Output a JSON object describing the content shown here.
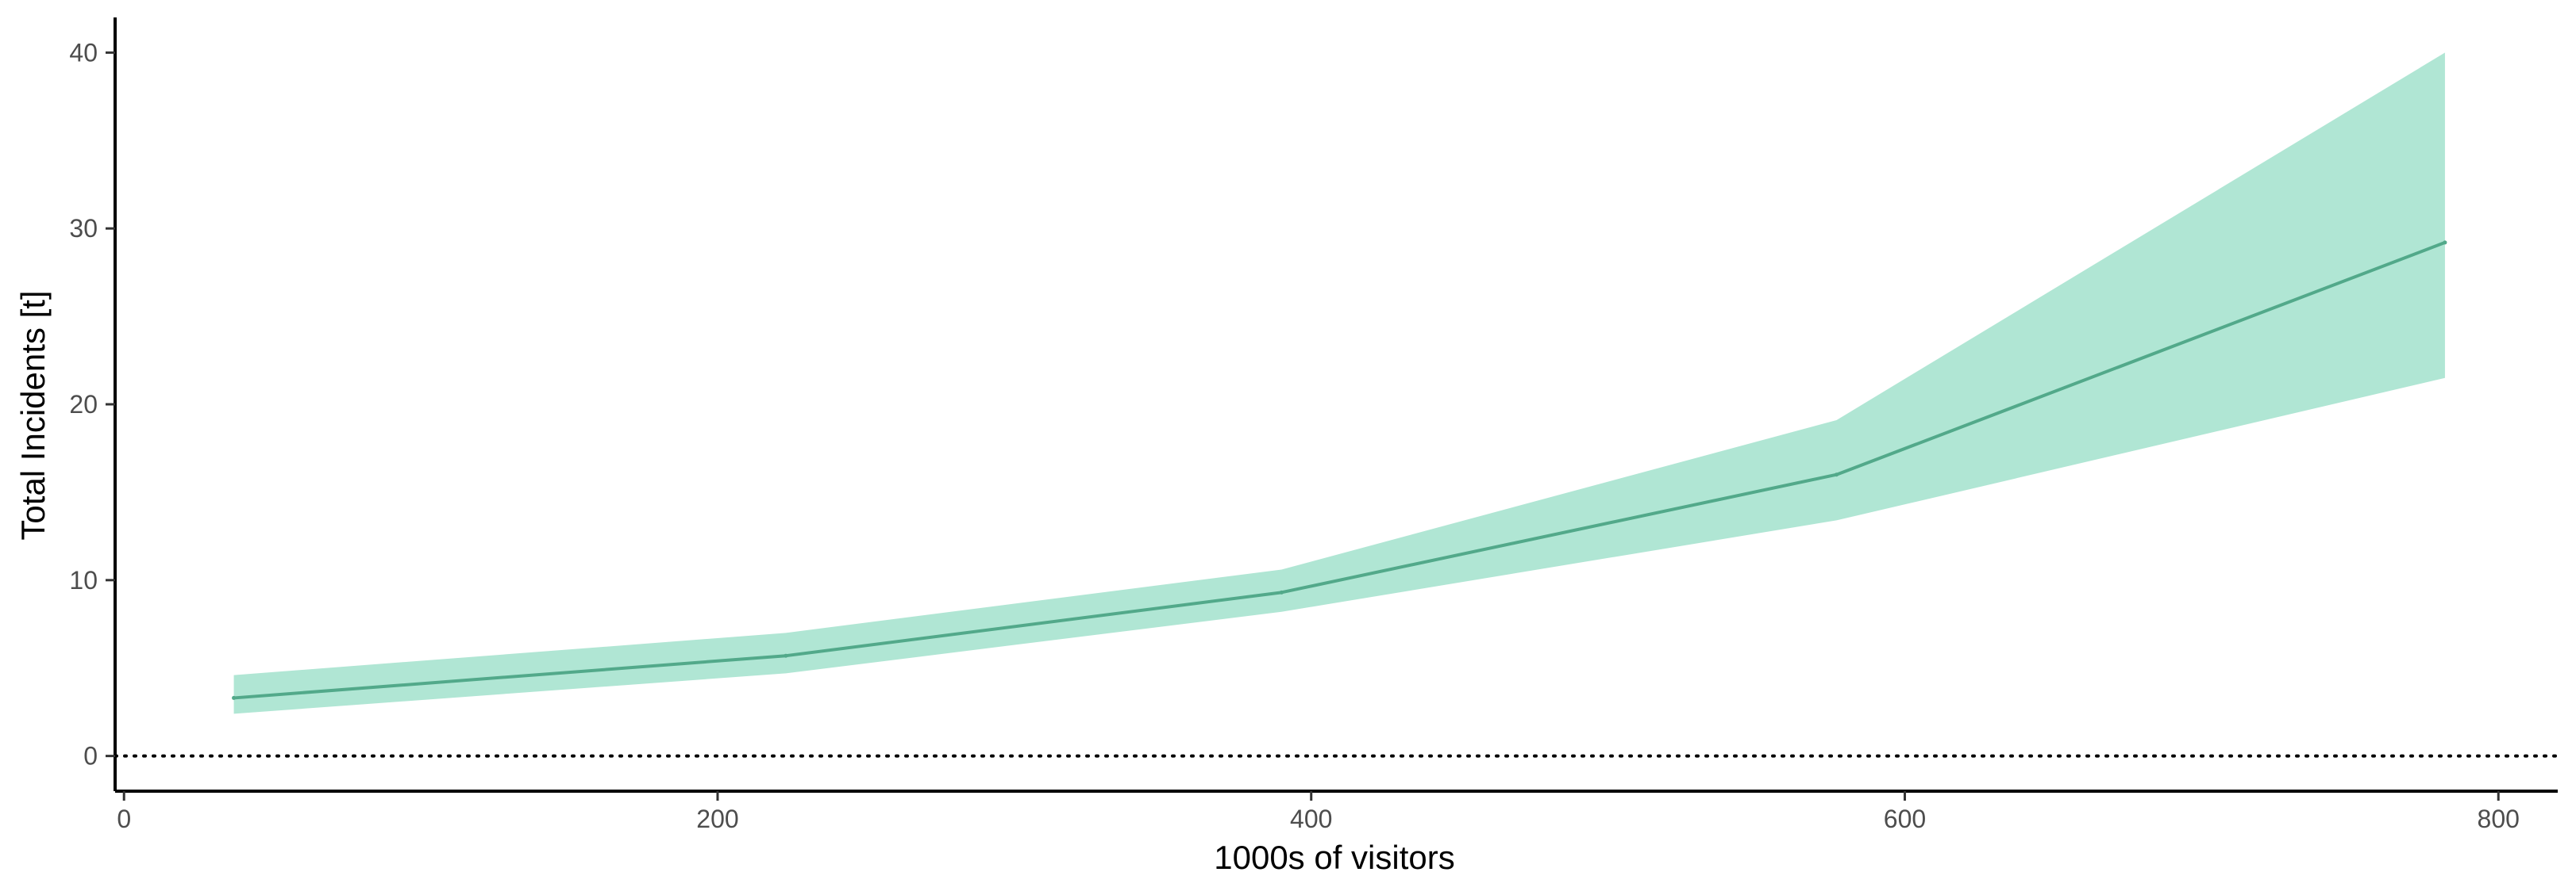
{
  "chart_data": {
    "type": "line",
    "title": "",
    "xlabel": "1000s of visitors",
    "ylabel": "Total Incidents [t]",
    "xlim": [
      -3,
      820
    ],
    "ylim": [
      -2,
      42
    ],
    "x_ticks": [
      0,
      200,
      400,
      600,
      800
    ],
    "y_ticks": [
      0,
      10,
      20,
      30,
      40
    ],
    "grid": false,
    "legend": "none",
    "reference_line": {
      "y": 0,
      "style": "dotted",
      "color": "#000000"
    },
    "series": [
      {
        "x": [
          37,
          223,
          390,
          577,
          782
        ],
        "y": [
          3.3,
          5.7,
          9.3,
          16.0,
          29.2
        ],
        "lower": [
          2.4,
          4.7,
          8.2,
          13.4,
          21.5
        ],
        "upper": [
          4.6,
          7.0,
          10.6,
          19.1,
          40.0
        ],
        "line_color": "#52a98a",
        "band_color": "#b0e6d4"
      }
    ]
  }
}
